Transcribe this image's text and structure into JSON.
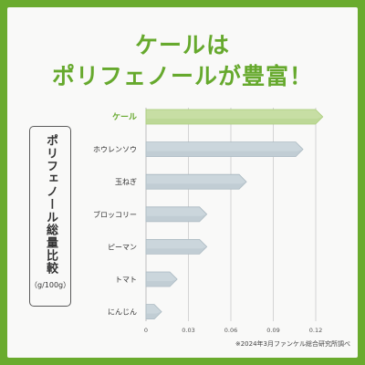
{
  "header": {
    "line1": "ケールは",
    "line2": "ポリフェノールが豊富！"
  },
  "side_label": {
    "text": "ポリフェノール総量比較",
    "unit": "（g/100g）"
  },
  "footnote": "※2024年3月ファンケル総合研究所調べ",
  "colors": {
    "frame": "#6aab2e",
    "headline": "#66a92d",
    "highlight_fill": "#c7dea4",
    "highlight_text": "#66a92d",
    "bar_fill": "#cbd6dc",
    "bar_edge": "#a9b8c0"
  },
  "chart_data": {
    "type": "bar",
    "orientation": "horizontal",
    "categories": [
      "ケール",
      "ホウレンソウ",
      "玉ねぎ",
      "ブロッコリー",
      "ピーマン",
      "トマト",
      "にんじん"
    ],
    "values": [
      0.125,
      0.111,
      0.071,
      0.043,
      0.043,
      0.022,
      0.011
    ],
    "highlight": "ケール",
    "xlim": [
      0,
      0.12
    ],
    "xticks": [
      "0",
      "0.03",
      "0.06",
      "0.09",
      "0.12"
    ],
    "grid": true
  }
}
